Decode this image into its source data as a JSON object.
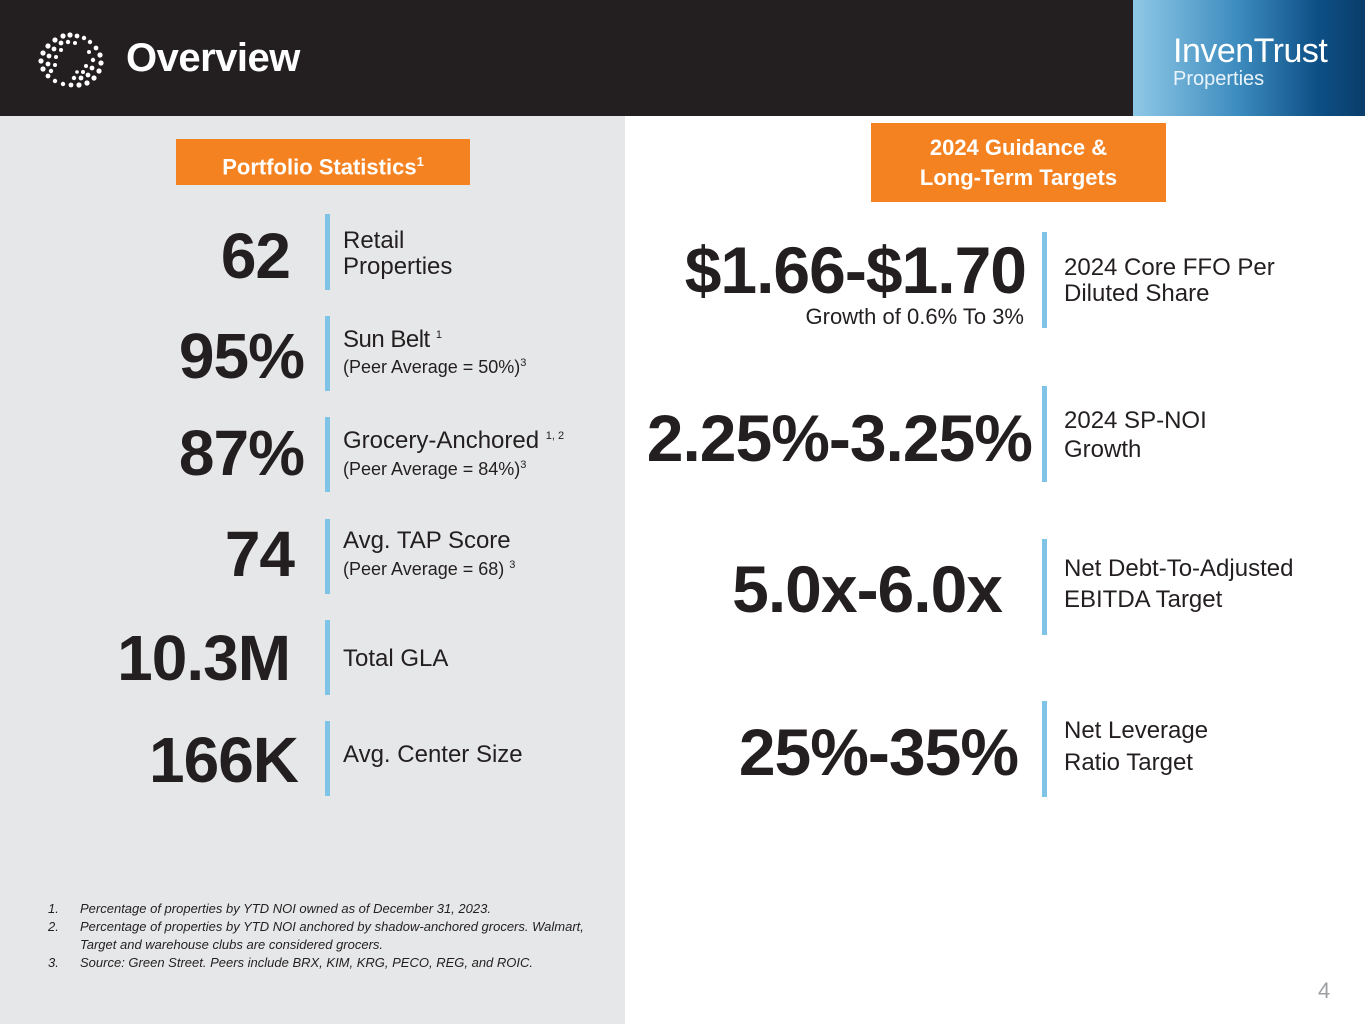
{
  "header": {
    "title": "Overview",
    "brand_name": "InvenTrust",
    "brand_sub": "Properties"
  },
  "portfolio": {
    "heading": "Portfolio Statistics",
    "heading_sup": "1",
    "stats": [
      {
        "value": "62",
        "label": "Retail",
        "label2": "Properties"
      },
      {
        "value": "95%",
        "label": "Sun Belt",
        "label_sup": "1",
        "sub": "(Peer Average = 50%)",
        "sub_sup": "3"
      },
      {
        "value": "87%",
        "label": "Grocery-Anchored",
        "label_sup": "1, 2",
        "sub": "(Peer Average = 84%)",
        "sub_sup": "3"
      },
      {
        "value": "74",
        "label": "Avg. TAP Score",
        "sub": "(Peer Average = 68)",
        "sub_sup": "3"
      },
      {
        "value": "10.3M",
        "label": "Total GLA"
      },
      {
        "value": "166K",
        "label": "Avg. Center Size"
      }
    ]
  },
  "guidance": {
    "heading_line1": "2024 Guidance &",
    "heading_line2": "Long-Term Targets",
    "items": [
      {
        "value": "$1.66-$1.70",
        "sub": "Growth of 0.6% To 3%",
        "label": "2024 Core FFO Per",
        "label2": "Diluted Share"
      },
      {
        "value": "2.25%-3.25%",
        "label": "2024 SP-NOI",
        "label2": "Growth"
      },
      {
        "value": "5.0x-6.0x",
        "label": "Net Debt-To-Adjusted",
        "label2": "EBITDA Target"
      },
      {
        "value": "25%-35%",
        "label": "Net Leverage",
        "label2": "Ratio Target"
      }
    ]
  },
  "footnotes": [
    {
      "n": "1.",
      "text": "Percentage of properties by YTD NOI owned as of December 31, 2023."
    },
    {
      "n": "2.",
      "text": "Percentage of properties by YTD NOI anchored by shadow-anchored grocers. Walmart, Target and warehouse clubs are considered grocers."
    },
    {
      "n": "3.",
      "text": "Source: Green Street.  Peers include BRX, KIM, KRG, PECO, REG, and ROIC."
    }
  ],
  "page_number": "4",
  "colors": {
    "accent_orange": "#f58220",
    "bar_blue": "#7fc4e6",
    "header_dark": "#231f20",
    "panel_gray": "#e6e7e8"
  }
}
